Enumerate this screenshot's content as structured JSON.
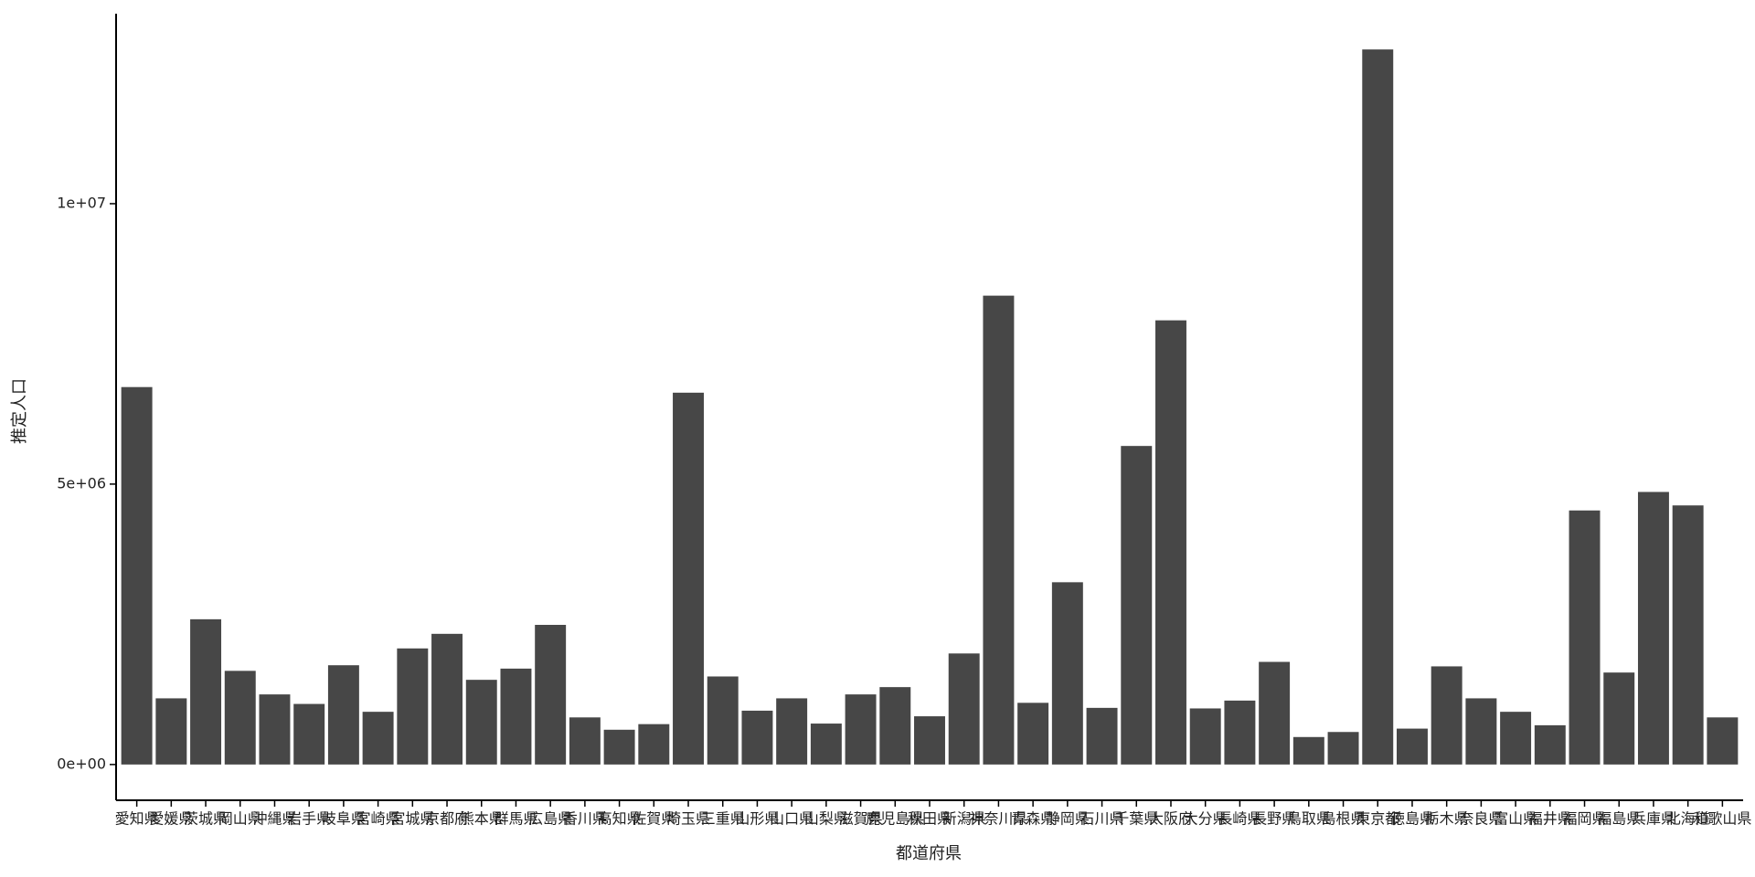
{
  "chart_data": {
    "type": "bar",
    "x_label": "都道府県",
    "y_label": "推定人口",
    "categories": [
      "愛知県",
      "愛媛県",
      "茨城県",
      "岡山県",
      "沖縄県",
      "岩手県",
      "岐阜県",
      "宮崎県",
      "宮城県",
      "京都府",
      "熊本県",
      "群馬県",
      "広島県",
      "香川県",
      "高知県",
      "佐賀県",
      "埼玉県",
      "三重県",
      "山形県",
      "山口県",
      "山梨県",
      "滋賀県",
      "鹿児島県",
      "秋田県",
      "新潟県",
      "神奈川県",
      "青森県",
      "静岡県",
      "石川県",
      "千葉県",
      "大阪府",
      "大分県",
      "長崎県",
      "長野県",
      "鳥取県",
      "島根県",
      "東京都",
      "徳島県",
      "栃木県",
      "奈良県",
      "富山県",
      "福井県",
      "福岡県",
      "福島県",
      "兵庫県",
      "北海道",
      "和歌山県"
    ],
    "values": [
      6730000,
      1180000,
      2590000,
      1670000,
      1250000,
      1080000,
      1770000,
      940000,
      2070000,
      2330000,
      1510000,
      1710000,
      2490000,
      840000,
      620000,
      720000,
      6630000,
      1570000,
      960000,
      1180000,
      730000,
      1250000,
      1380000,
      860000,
      1980000,
      8360000,
      1100000,
      3250000,
      1010000,
      5680000,
      7920000,
      1000000,
      1140000,
      1830000,
      490000,
      580000,
      12750000,
      640000,
      1750000,
      1180000,
      940000,
      700000,
      4530000,
      1640000,
      4860000,
      4620000,
      840000
    ],
    "color": "#474747",
    "ylim": [
      -637500,
      13387500
    ],
    "yticks": [
      {
        "value": 0,
        "label": "0e+00"
      },
      {
        "value": 5000000,
        "label": "5e+06"
      },
      {
        "value": 10000000,
        "label": "1e+07"
      }
    ]
  }
}
